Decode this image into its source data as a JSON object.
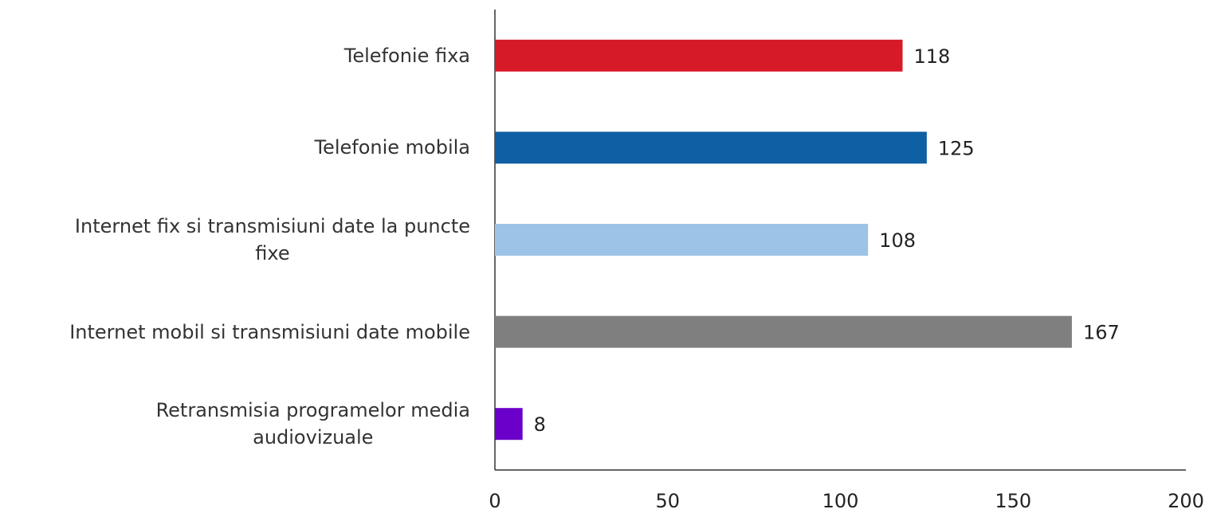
{
  "chart_data": {
    "type": "barh",
    "categories": [
      "Telefonie fixa",
      "Telefonie mobila",
      "Internet fix si transmisiuni date la puncte\nfixe",
      "Internet mobil si transmisiuni date mobile",
      "Retransmisia programelor media\naudiovizuale"
    ],
    "values": [
      118,
      125,
      108,
      167,
      8
    ],
    "colors": [
      "#d71a28",
      "#0e5fa3",
      "#9dc3e6",
      "#7f7f7f",
      "#6a00c9"
    ],
    "xlim": [
      0,
      200
    ],
    "xticks": [
      0,
      50,
      100,
      150,
      200
    ],
    "grid": false
  }
}
